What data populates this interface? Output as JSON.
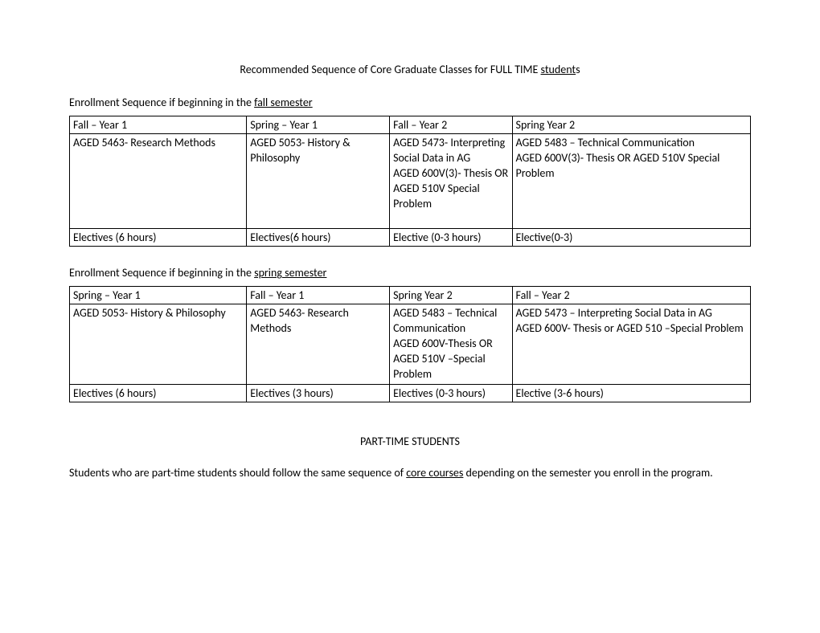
{
  "title": {
    "prefix": "Recommended Sequence of Core Graduate Classes for FULL TIME ",
    "underlined": "student",
    "suffix": "s"
  },
  "fall_intro": {
    "prefix": "Enrollment Sequence if beginning in the ",
    "underlined": "fall semester"
  },
  "spring_intro": {
    "prefix": "Enrollment Sequence if beginning in the ",
    "underlined": "spring semester"
  },
  "fall_table": {
    "headers": [
      "Fall – Year 1",
      "Spring – Year 1",
      "Fall – Year 2",
      "Spring Year 2"
    ],
    "row1": {
      "c1": "AGED 5463- Research Methods",
      "c2": "AGED 5053- History & Philosophy",
      "c3": "AGED 5473- Interpreting Social Data in AG\nAGED 600V(3)- Thesis OR\nAGED 510V Special Problem\n ",
      "c4": "AGED 5483 – Technical Communication\nAGED 600V(3)- Thesis  OR AGED 510V Special Problem"
    },
    "row2": {
      "c1": "Electives (6 hours)",
      "c2": "Electives(6 hours)",
      "c3": "Elective (0-3 hours)",
      "c4": "Elective(0-3)"
    }
  },
  "spring_table": {
    "headers": [
      "Spring – Year 1",
      "Fall – Year 1",
      "Spring Year 2",
      "Fall – Year 2"
    ],
    "row1": {
      "c1": "AGED 5053- History & Philosophy",
      "c2": "AGED 5463- Research Methods",
      "c3": "AGED 5483 – Technical Communication\nAGED 600V-Thesis OR\nAGED 510V –Special Problem",
      "c4": "AGED 5473 – Interpreting Social Data in AG\nAGED 600V- Thesis or AGED 510 –Special Problem"
    },
    "row2": {
      "c1": "Electives (6 hours)",
      "c2": "Electives (3 hours)",
      "c3": "Electives (0-3 hours)",
      "c4": "Elective (3-6 hours)"
    }
  },
  "part_time_heading": "PART-TIME STUDENTS",
  "part_time_text": {
    "prefix": "Students who are part-time students should follow the same sequence of ",
    "underlined": "core courses",
    "suffix": " depending on the semester you enroll in the program."
  }
}
